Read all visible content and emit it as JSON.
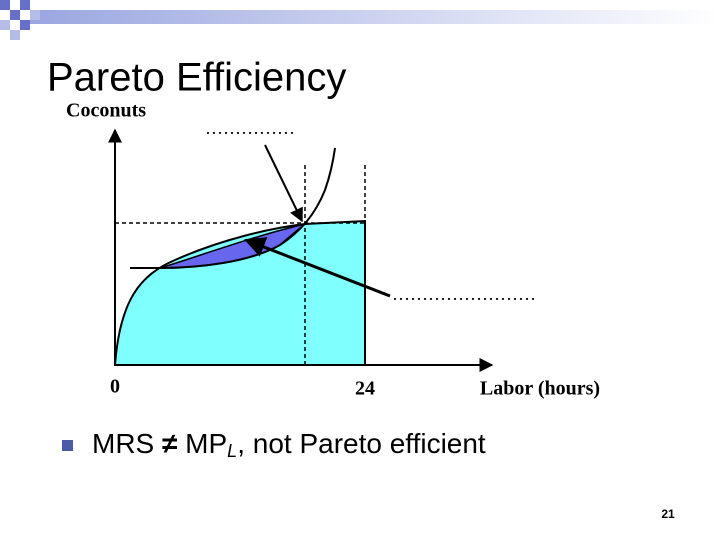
{
  "header": {
    "title": "Pareto Efficiency"
  },
  "graph": {
    "y_axis_label": "Coconuts",
    "x_axis_label": "Labor (hours)",
    "origin_label": "0",
    "x_mark_label": "24",
    "blank_top": "……………",
    "blank_right": "……………………"
  },
  "bullets": [
    {
      "parts": [
        "MRS",
        "≠",
        "MP",
        "L",
        ", not Pareto efficient"
      ]
    }
  ],
  "footer": {
    "page_number": "21"
  }
}
